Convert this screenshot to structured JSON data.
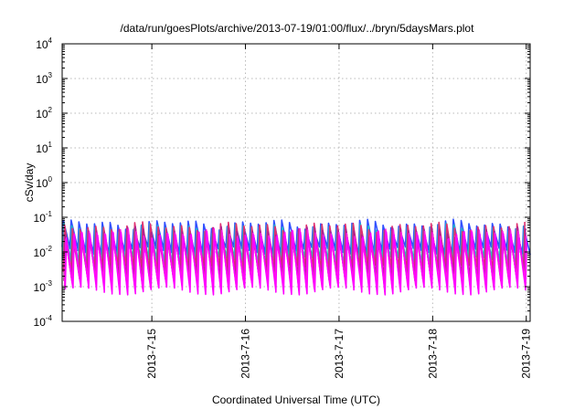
{
  "chart_data": {
    "type": "line",
    "title": "/data/run/goesPlots/archive/2013-07-19/01:00/flux/../bryn/5daysMars.plot",
    "xlabel": "Coordinated Universal Time (UTC)",
    "ylabel": "cSv/day",
    "y_scale": "log",
    "ylim": [
      0.0001,
      10000
    ],
    "y_ticks": [
      {
        "base": "10",
        "exp": "-4",
        "value": 0.0001
      },
      {
        "base": "10",
        "exp": "-3",
        "value": 0.001
      },
      {
        "base": "10",
        "exp": "-2",
        "value": 0.01
      },
      {
        "base": "10",
        "exp": "-1",
        "value": 0.1
      },
      {
        "base": "10",
        "exp": "0",
        "value": 1
      },
      {
        "base": "10",
        "exp": "1",
        "value": 10
      },
      {
        "base": "10",
        "exp": "2",
        "value": 100
      },
      {
        "base": "10",
        "exp": "3",
        "value": 1000
      },
      {
        "base": "10",
        "exp": "4",
        "value": 10000
      }
    ],
    "xlim": [
      "2013-07-14T01:00",
      "2013-07-19T01:00"
    ],
    "x_ticks": [
      "2013-7-15",
      "2013-7-16",
      "2013-7-17",
      "2013-7-18",
      "2013-7-19"
    ],
    "grid": true,
    "legend": "none",
    "sawtooth_period_hours": 2,
    "series": [
      {
        "color": "#3050ff",
        "peak": 0.065,
        "trough": 0.0115
      },
      {
        "color": "#20c0c0",
        "peak": 0.05,
        "trough": 0.006
      },
      {
        "color": "#e03070",
        "peak": 0.055,
        "trough": 0.0035
      },
      {
        "color": "#b02090",
        "peak": 0.04,
        "trough": 0.002
      },
      {
        "color": "#ff20e0",
        "peak": 0.035,
        "trough": 0.0012
      },
      {
        "color": "#ff00ff",
        "peak": 0.03,
        "trough": 0.0008
      }
    ]
  }
}
